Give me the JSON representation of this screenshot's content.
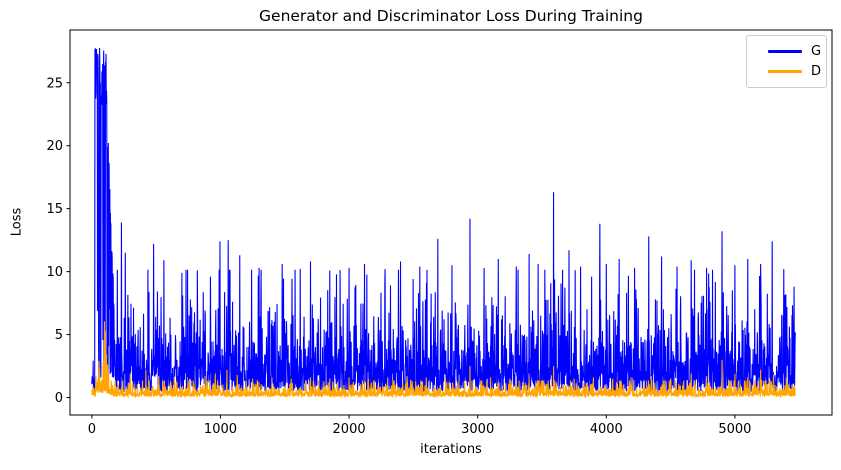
{
  "chart_data": {
    "type": "line",
    "title": "Generator and Discriminator Loss During Training",
    "xlabel": "iterations",
    "ylabel": "Loss",
    "xlim": [
      -170,
      5755
    ],
    "ylim": [
      -1.39,
      29.19
    ],
    "xticks": [
      0,
      1000,
      2000,
      3000,
      4000,
      5000
    ],
    "yticks": [
      0,
      5,
      10,
      15,
      20,
      25
    ],
    "grid": false,
    "background": "#ffffff",
    "legend": {
      "position": "upper right",
      "entries": [
        {
          "label": "G",
          "color": "#0000ff"
        },
        {
          "label": "D",
          "color": "#ffa500"
        }
      ]
    },
    "x_max": 5470,
    "sample_step": 2,
    "noise_seed": 42,
    "series": [
      {
        "name": "G",
        "color": "#0000ff",
        "description": "Generator loss per iteration: initial plateau spike to 27.8 around iterations 25-115, then dense noise band ~0.5-10 with intermittent spikes 10-16.3",
        "peak_value": 27.8,
        "segments": [
          {
            "from": 0,
            "to": 23,
            "lo": 0.35,
            "loSpread": 1.2,
            "cap": 6.5
          },
          {
            "from": 23,
            "to": 115,
            "p_hi": 0.65,
            "hi": 27.8,
            "hiSpread": 2.2,
            "hiCap": 4.5,
            "lo": 1.0,
            "loSpread": 3.0,
            "cap": 8
          },
          {
            "from": 115,
            "to": 175,
            "p_hi": 0.5,
            "hi0": 24,
            "hi1": 7,
            "hiSpread": 2.0,
            "hiCap": 4,
            "lo": 1.0,
            "loSpread": 2.5,
            "cap": 6
          },
          {
            "from": 175,
            "to": 5470,
            "lo": 0.45,
            "loSpread": 2.05,
            "cap": 9.7
          }
        ],
        "spikes": [
          [
            230,
            13.9
          ],
          [
            260,
            11.5
          ],
          [
            480,
            12.2
          ],
          [
            560,
            10.9
          ],
          [
            700,
            9.9
          ],
          [
            820,
            10.1
          ],
          [
            995,
            12.4
          ],
          [
            1060,
            12.5
          ],
          [
            1150,
            11.3
          ],
          [
            1300,
            10.3
          ],
          [
            1480,
            10.6
          ],
          [
            1620,
            10.2
          ],
          [
            1700,
            10.8
          ],
          [
            1850,
            10.1
          ],
          [
            2000,
            10.3
          ],
          [
            2120,
            10.6
          ],
          [
            2280,
            10.2
          ],
          [
            2400,
            10.8
          ],
          [
            2550,
            10.4
          ],
          [
            2690,
            12.6
          ],
          [
            2800,
            10.5
          ],
          [
            2940,
            14.2
          ],
          [
            3050,
            10.3
          ],
          [
            3160,
            11.0
          ],
          [
            3300,
            10.4
          ],
          [
            3400,
            11.4
          ],
          [
            3470,
            10.6
          ],
          [
            3590,
            16.3
          ],
          [
            3710,
            11.7
          ],
          [
            3800,
            10.4
          ],
          [
            3950,
            13.8
          ],
          [
            4000,
            10.6
          ],
          [
            4100,
            11.0
          ],
          [
            4220,
            10.3
          ],
          [
            4330,
            12.8
          ],
          [
            4430,
            11.2
          ],
          [
            4550,
            10.4
          ],
          [
            4660,
            10.9
          ],
          [
            4780,
            10.3
          ],
          [
            4900,
            13.2
          ],
          [
            5000,
            10.5
          ],
          [
            5100,
            11.0
          ],
          [
            5200,
            10.6
          ],
          [
            5290,
            12.4
          ],
          [
            5380,
            10.2
          ]
        ]
      },
      {
        "name": "D",
        "color": "#ffa500",
        "description": "Discriminator loss per iteration: low band ~0.05-1.3, elevated 0.3-2.6 during generator plateau, spike to 6.05 near iteration 100, occasional spikes 1.5-3.0",
        "peak_value": 6.05,
        "segments": [
          {
            "from": 0,
            "to": 30,
            "lo": 0.1,
            "loSpread": 0.3,
            "cap": 1.0
          },
          {
            "from": 30,
            "to": 95,
            "lo": 0.3,
            "loSpread": 0.8,
            "cap": 2.6
          },
          {
            "from": 95,
            "to": 145,
            "lo0": 0.5,
            "lo1": 0.15,
            "loSpread": 0.6,
            "cap": 2.0
          },
          {
            "from": 145,
            "to": 5470,
            "lo": 0.07,
            "loSpread": 0.33,
            "cap": 1.28
          }
        ],
        "spikes": [
          [
            98,
            6.05
          ],
          [
            103,
            5.3
          ],
          [
            108,
            4.3
          ],
          [
            114,
            3.4
          ],
          [
            122,
            2.6
          ],
          [
            130,
            2.0
          ],
          [
            300,
            1.9
          ],
          [
            420,
            2.2
          ],
          [
            520,
            1.7
          ],
          [
            640,
            1.6
          ],
          [
            760,
            1.5
          ],
          [
            880,
            1.7
          ],
          [
            960,
            1.9
          ],
          [
            1050,
            2.2
          ],
          [
            1130,
            1.8
          ],
          [
            1250,
            1.5
          ],
          [
            1400,
            1.6
          ],
          [
            1550,
            1.5
          ],
          [
            1700,
            1.6
          ],
          [
            1850,
            1.5
          ],
          [
            2000,
            1.6
          ],
          [
            2150,
            1.5
          ],
          [
            2300,
            1.6
          ],
          [
            2450,
            1.7
          ],
          [
            2600,
            1.6
          ],
          [
            2750,
            1.5
          ],
          [
            2940,
            2.5
          ],
          [
            3100,
            1.6
          ],
          [
            3250,
            1.5
          ],
          [
            3400,
            1.6
          ],
          [
            3590,
            2.5
          ],
          [
            3750,
            1.5
          ],
          [
            3900,
            1.6
          ],
          [
            4050,
            1.5
          ],
          [
            4200,
            1.6
          ],
          [
            4350,
            1.7
          ],
          [
            4500,
            1.5
          ],
          [
            4660,
            1.9
          ],
          [
            4780,
            1.7
          ],
          [
            4900,
            3.0
          ],
          [
            5000,
            1.9
          ],
          [
            5100,
            1.6
          ],
          [
            5200,
            2.2
          ],
          [
            5300,
            1.8
          ],
          [
            5400,
            1.6
          ]
        ]
      }
    ]
  }
}
